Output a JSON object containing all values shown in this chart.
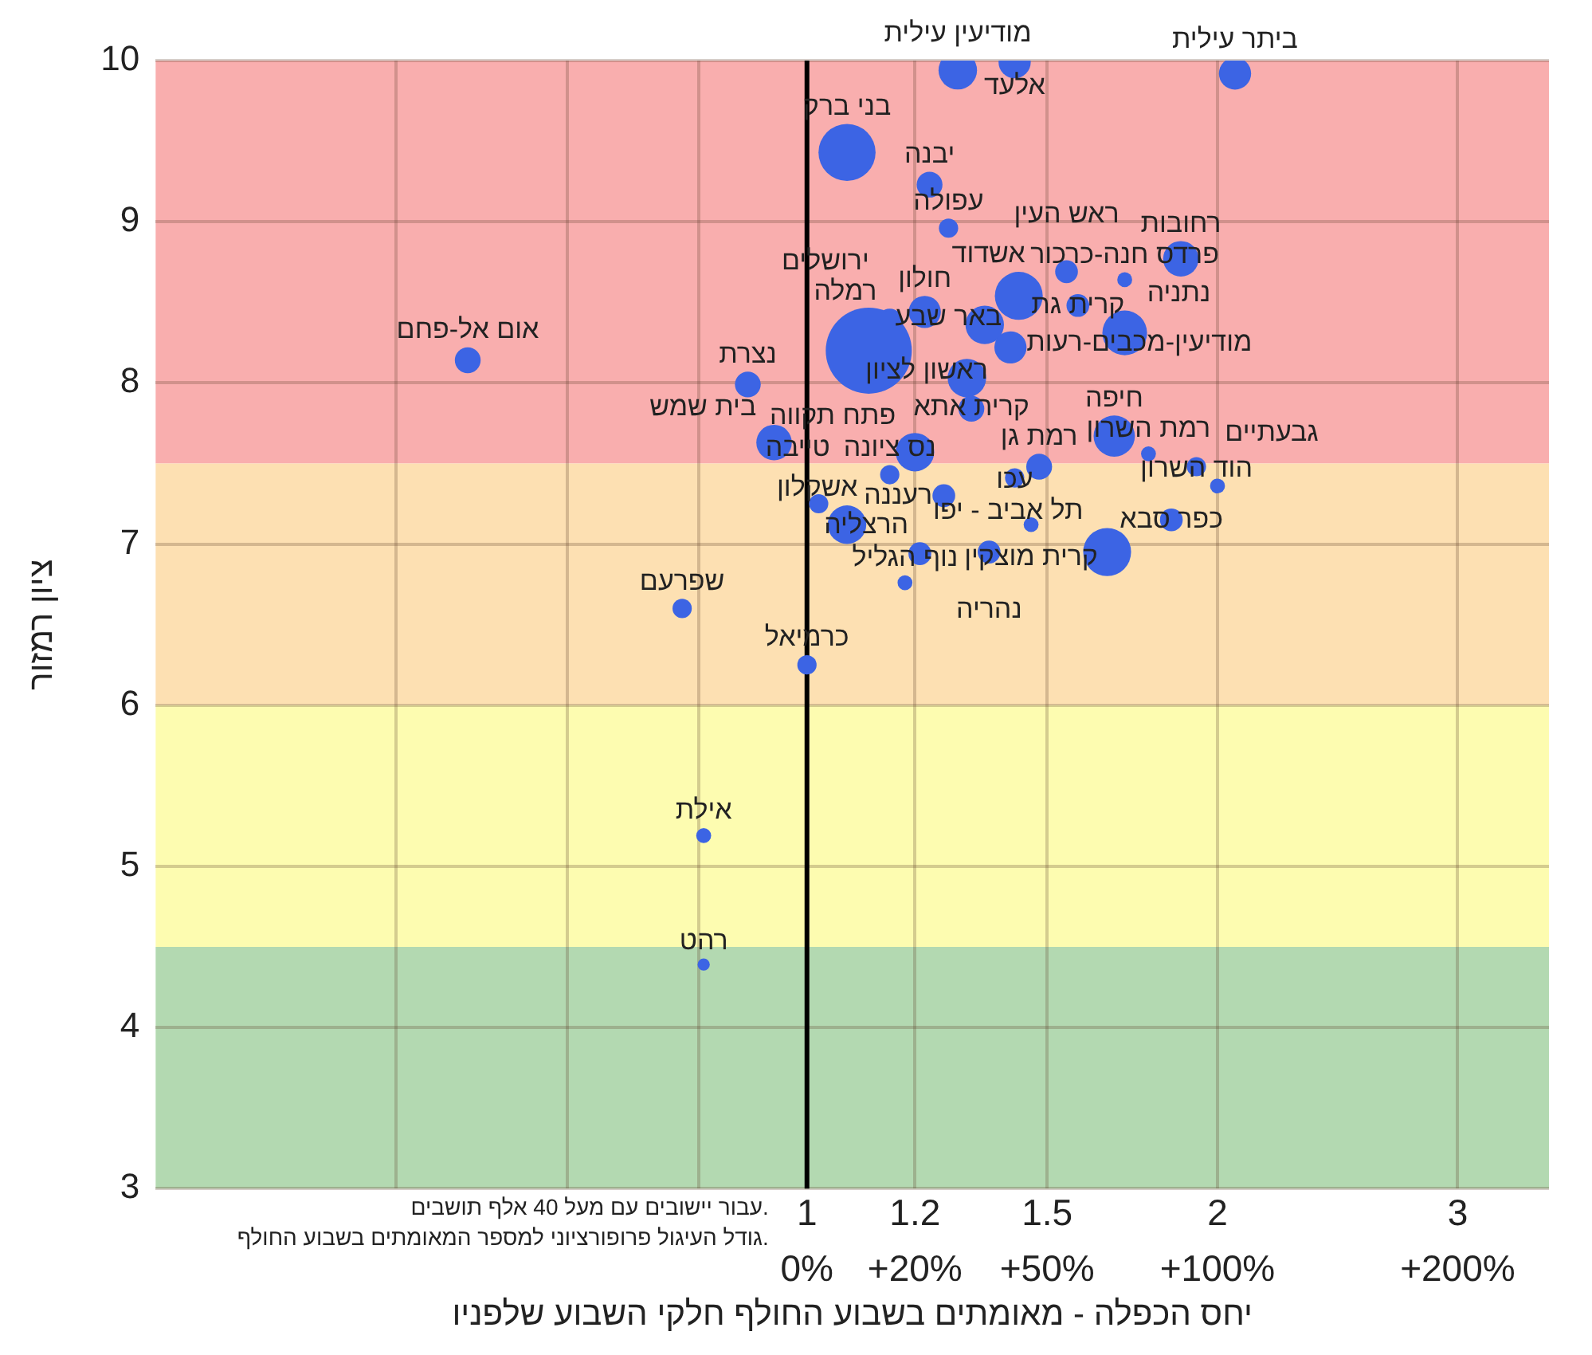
{
  "chart_data": {
    "type": "bubble",
    "xlabel": "יחס הכפלה - מאומתים בשבוע החולף חלקי השבוע שלפניו",
    "ylabel": "ציון רמזור",
    "log": "x",
    "xlim": [
      0.333,
      3.5
    ],
    "ylim": [
      3,
      10
    ],
    "xticks": [
      {
        "value": 0.5,
        "label": null
      },
      {
        "value": 0.667,
        "label": null
      },
      {
        "value": 0.833,
        "label": null
      },
      1,
      1.2,
      1.5,
      2,
      3
    ],
    "yticks": [
      3,
      4,
      5,
      6,
      7,
      8,
      9,
      10
    ],
    "grid": true,
    "legend": false,
    "marker": "circle",
    "bands": [
      {
        "axis": "y",
        "from": 7.5,
        "to": 10,
        "color": "#f9aeae"
      },
      {
        "axis": "y",
        "from": 6,
        "to": 7.5,
        "color": "#fde0b2"
      },
      {
        "axis": "y",
        "from": 4.5,
        "to": 6,
        "color": "#fdfcb0"
      },
      {
        "axis": "y",
        "from": 3,
        "to": 4.5,
        "color": "#b3d9b1"
      }
    ],
    "ref_lines": [
      {
        "axis": "x",
        "value": 1,
        "color": "#000000"
      }
    ],
    "series": [
      {
        "color": "#3c64e4",
        "x": [
          2.06,
          1.29,
          1.42,
          1.07,
          1.23,
          1.27,
          1.88,
          1.71,
          1.55,
          1.58,
          1.71,
          1.43,
          1.22,
          1.35,
          1.15,
          1.11,
          1.41,
          1.31,
          1.32,
          1.2,
          1.15,
          0.905,
          0.564,
          0.946,
          1.68,
          1.78,
          1.93,
          2.0,
          1.85,
          1.66,
          1.48,
          1.42,
          1.46,
          1.36,
          1.26,
          1.21,
          1.18,
          1.07,
          1.02,
          1.0,
          0.81,
          0.84,
          0.84
        ],
        "values": [
          9.92,
          9.94,
          9.99,
          9.43,
          9.23,
          8.96,
          8.77,
          8.64,
          8.69,
          8.48,
          8.31,
          8.54,
          8.44,
          8.36,
          8.38,
          8.2,
          8.22,
          8.03,
          7.84,
          7.57,
          7.43,
          7.99,
          8.14,
          7.63,
          7.67,
          7.56,
          7.48,
          7.36,
          7.15,
          6.95,
          7.48,
          7.41,
          7.12,
          6.95,
          7.3,
          6.94,
          6.76,
          7.12,
          7.25,
          6.25,
          6.6,
          5.19,
          4.39
        ],
        "sizes": [
          0.14,
          0.2,
          0.14,
          0.44,
          0.09,
          0.05,
          0.17,
          0.03,
          0.07,
          0.07,
          0.27,
          0.31,
          0.14,
          0.2,
          0.09,
          1,
          0.14,
          0.2,
          0.09,
          0.2,
          0.05,
          0.09,
          0.09,
          0.17,
          0.23,
          0.03,
          0.05,
          0.03,
          0.07,
          0.31,
          0.09,
          0.05,
          0.03,
          0.07,
          0.07,
          0.07,
          0.03,
          0.2,
          0.05,
          0.05,
          0.05,
          0.03,
          0.02
        ]
      }
    ],
    "annotations": [
      "0%",
      "+20%",
      "+50%",
      "+100%",
      "+200%",
      "עבור יישובים עם מעל 40 אלף תושבים.",
      "גודל העיגול פרופורציוני למספר המאומתים בשבוע החולף.",
      {
        "text": "ביתר עילית",
        "x": 2.06,
        "y": 9.92
      },
      {
        "text": "מודיעין עילית",
        "x": 1.29,
        "y": 9.94
      },
      {
        "text": "אלעד",
        "x": 1.42,
        "y": 9.99
      },
      {
        "text": "בני ברק",
        "x": 1.07,
        "y": 9.43
      },
      {
        "text": "יבנה",
        "x": 1.23,
        "y": 9.23
      },
      {
        "text": "עפולה",
        "x": 1.27,
        "y": 8.96
      },
      {
        "text": "רחובות",
        "x": 1.88,
        "y": 8.77
      },
      {
        "text": "פרדס חנה-כרכור",
        "x": 1.71,
        "y": 8.64
      },
      {
        "text": "ראש העין",
        "x": 1.55,
        "y": 8.69
      },
      {
        "text": "קרית גת",
        "x": 1.58,
        "y": 8.48
      },
      {
        "text": "נתניה",
        "x": 1.71,
        "y": 8.31
      },
      {
        "text": "אשדוד",
        "x": 1.43,
        "y": 8.54
      },
      {
        "text": "חולון",
        "x": 1.22,
        "y": 8.44
      },
      {
        "text": "באר שבע",
        "x": 1.35,
        "y": 8.36
      },
      {
        "text": "רמלה",
        "x": 1.15,
        "y": 8.38
      },
      {
        "text": "ירושלים",
        "x": 1.11,
        "y": 8.2
      },
      {
        "text": "מודיעין-מכבים-רעות",
        "x": 1.41,
        "y": 8.22
      },
      {
        "text": "ראשון לציון",
        "x": 1.31,
        "y": 8.03
      },
      {
        "text": "קרית אתא",
        "x": 1.32,
        "y": 7.84
      },
      {
        "text": "פתח תקווה",
        "x": 1.2,
        "y": 7.57
      },
      {
        "text": "נס ציונה",
        "x": 1.15,
        "y": 7.43
      },
      {
        "text": "נצרת",
        "x": 0.905,
        "y": 7.99
      },
      {
        "text": "אום אל-פחם",
        "x": 0.564,
        "y": 8.14
      },
      {
        "text": "בית שמש",
        "x": 0.946,
        "y": 7.63
      },
      {
        "text": "חיפה",
        "x": 1.68,
        "y": 7.67
      },
      {
        "text": "רמת השרון",
        "x": 1.78,
        "y": 7.56
      },
      {
        "text": "הוד השרון",
        "x": 1.93,
        "y": 7.48
      },
      {
        "text": "גבעתיים",
        "x": 2.0,
        "y": 7.36
      },
      {
        "text": "כפר סבא",
        "x": 1.85,
        "y": 7.15
      },
      {
        "text": "תל אביב - יפו",
        "x": 1.66,
        "y": 6.95
      },
      {
        "text": "רמת גן",
        "x": 1.48,
        "y": 7.48
      },
      {
        "text": "עכו",
        "x": 1.42,
        "y": 7.41
      },
      {
        "text": "קרית מוצקין",
        "x": 1.46,
        "y": 7.12
      },
      {
        "text": "נהריה",
        "x": 1.36,
        "y": 6.95
      },
      {
        "text": "רעננה",
        "x": 1.26,
        "y": 7.3
      },
      {
        "text": "הרצליה",
        "x": 1.21,
        "y": 6.94
      },
      {
        "text": "נוף הגליל",
        "x": 1.18,
        "y": 6.76
      },
      {
        "text": "אשקלון",
        "x": 1.07,
        "y": 7.12
      },
      {
        "text": "טייבה",
        "x": 1.02,
        "y": 7.25
      },
      {
        "text": "כרמיאל",
        "x": 1.0,
        "y": 6.25
      },
      {
        "text": "שפרעם",
        "x": 0.81,
        "y": 6.6
      },
      {
        "text": "אילת",
        "x": 0.84,
        "y": 5.19
      },
      {
        "text": "רהט",
        "x": 0.84,
        "y": 4.39
      }
    ]
  }
}
